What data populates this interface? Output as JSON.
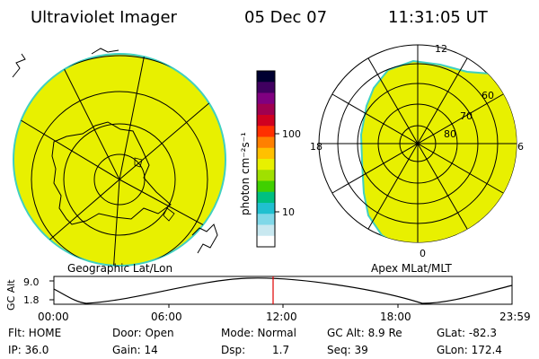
{
  "header": {
    "instrument": "Ultraviolet Imager",
    "date": "05 Dec 07",
    "time": "11:31:05 UT"
  },
  "geo_panel": {
    "label": "Geographic Lat/Lon",
    "fill_color": "#e8f000",
    "edge_color": "#40d0c0"
  },
  "apex_panel": {
    "label": "Apex MLat/MLT",
    "mlt_labels": [
      "12",
      "18",
      "6",
      "0"
    ],
    "mlat_labels": [
      "60",
      "70",
      "80"
    ]
  },
  "colorbar": {
    "unit": "photon cm⁻²s⁻¹",
    "ticks": [
      "100",
      "10"
    ],
    "scale": "log",
    "colors": [
      "#000030",
      "#400060",
      "#800080",
      "#a00050",
      "#d00020",
      "#ff3000",
      "#ff8000",
      "#ffc000",
      "#e8f000",
      "#a0e000",
      "#40d000",
      "#00c080",
      "#20c0d0",
      "#80d8e8",
      "#c8e8f0",
      "#ffffff"
    ]
  },
  "timeline": {
    "ylabel": "GC Alt",
    "y_ticks": [
      "9.0",
      "1.8"
    ],
    "x_ticks": [
      "00:00",
      "06:00",
      "12:00",
      "18:00",
      "23:59"
    ],
    "current_time_marker": "11:31"
  },
  "status": {
    "flt": "Flt: HOME",
    "ip": "IP: 36.0",
    "door": "Door: Open",
    "gain": "Gain: 14",
    "mode": "Mode: Normal",
    "dsp_label": "Dsp:",
    "dsp_value": "1.7",
    "gc_alt": "GC Alt: 8.9 Re",
    "seq": "Seq: 39",
    "glat": "GLat: -82.3",
    "glon": "GLon: 172.4"
  }
}
